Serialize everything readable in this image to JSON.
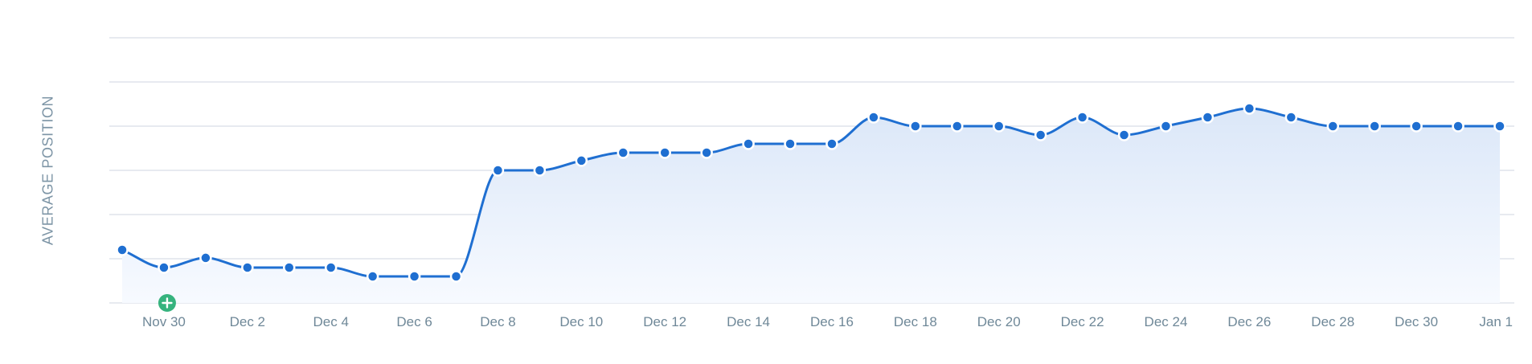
{
  "chart_data": {
    "type": "line",
    "title": "",
    "xlabel": "",
    "ylabel": "AVERAGE POSITION",
    "categories": [
      "Nov 29",
      "Nov 30",
      "Dec 1",
      "Dec 2",
      "Dec 3",
      "Dec 4",
      "Dec 5",
      "Dec 6",
      "Dec 7",
      "Dec 8",
      "Dec 9",
      "Dec 10",
      "Dec 11",
      "Dec 12",
      "Dec 13",
      "Dec 14",
      "Dec 15",
      "Dec 16",
      "Dec 17",
      "Dec 18",
      "Dec 19",
      "Dec 20",
      "Dec 21",
      "Dec 22",
      "Dec 23",
      "Dec 24",
      "Dec 25",
      "Dec 26",
      "Dec 27",
      "Dec 28",
      "Dec 29",
      "Dec 30",
      "Dec 31",
      "Jan 1"
    ],
    "tick_labels": [
      "Nov 30",
      "Dec 2",
      "Dec 4",
      "Dec 6",
      "Dec 8",
      "Dec 10",
      "Dec 12",
      "Dec 14",
      "Dec 16",
      "Dec 18",
      "Dec 20",
      "Dec 22",
      "Dec 24",
      "Dec 26",
      "Dec 28",
      "Dec 30",
      "Jan 1"
    ],
    "series": [
      {
        "values": [
          4.8,
          5.2,
          4.98,
          5.2,
          5.2,
          5.2,
          5.4,
          5.4,
          5.4,
          3.0,
          3.0,
          2.78,
          2.6,
          2.6,
          2.6,
          2.4,
          2.4,
          2.4,
          1.8,
          2.0,
          2.0,
          2.0,
          2.2,
          1.8,
          2.2,
          2.0,
          1.8,
          1.6,
          1.8,
          2.0,
          2.0,
          2.0,
          2.0,
          2.0
        ]
      }
    ],
    "y_reversed": true,
    "ylim": [
      0,
      6
    ],
    "grid": true,
    "colors": {
      "line": "#1f6fd1",
      "point_fill": "#1f6fd1",
      "point_stroke": "#ffffff",
      "area_top": "#dbe7f8",
      "area_bottom": "#f7faff",
      "grid": "#cfd6e2",
      "annotation": "#36b37e"
    },
    "annotations": [
      {
        "category": "Nov 30",
        "icon": "plus-circle-icon"
      }
    ]
  }
}
